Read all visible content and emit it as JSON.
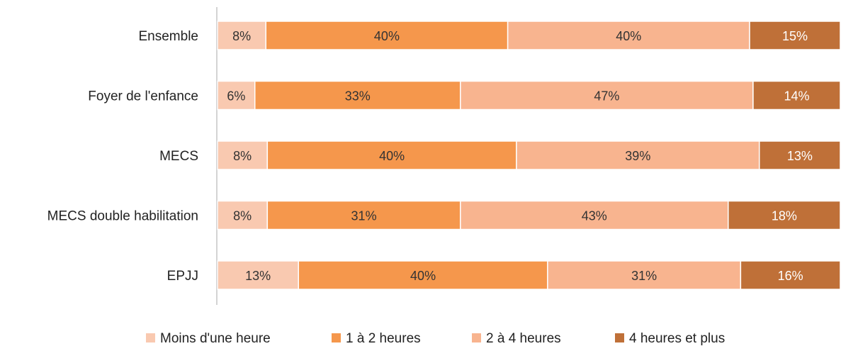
{
  "chart_data": {
    "type": "bar",
    "orientation": "horizontal",
    "stacked": true,
    "categories": [
      "Ensemble",
      "Foyer de l'enfance",
      "MECS",
      "MECS double habilitation",
      "EPJJ"
    ],
    "series": [
      {
        "name": "Moins d'une heure",
        "color": "#f9c9b0",
        "values": [
          8,
          6,
          8,
          8,
          13
        ],
        "labels": [
          "8%",
          "6%",
          "8%",
          "8%",
          "13%"
        ]
      },
      {
        "name": "1 à 2 heures",
        "color": "#f5974c",
        "values": [
          40,
          33,
          40,
          31,
          40
        ],
        "labels": [
          "40%",
          "33%",
          "40%",
          "31%",
          "40%"
        ]
      },
      {
        "name": "2 à 4 heures",
        "color": "#f8b48f",
        "values": [
          40,
          47,
          39,
          43,
          31
        ],
        "labels": [
          "40%",
          "47%",
          "39%",
          "43%",
          "31%"
        ]
      },
      {
        "name": "4 heures et plus",
        "color": "#bf7038",
        "values": [
          15,
          14,
          13,
          18,
          16
        ],
        "labels": [
          "15%",
          "14%",
          "13%",
          "18%",
          "16%"
        ]
      }
    ],
    "legend_position": "bottom",
    "grid": false
  }
}
